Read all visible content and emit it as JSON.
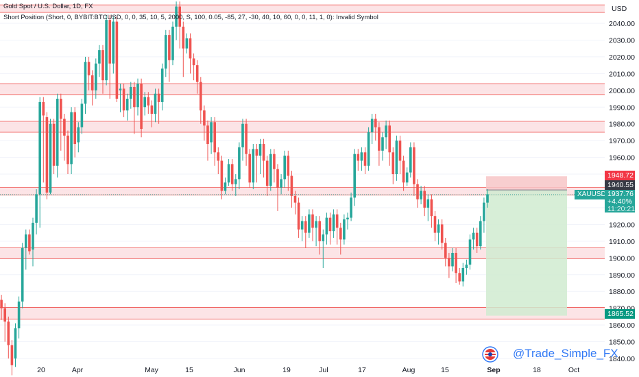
{
  "legend": {
    "title": "Gold Spot / U.S. Dollar, 1D, FX",
    "indicator": "Short Position (Short, 0, BYBIT:BTCUSD, 0, 0, 35, 10, 5, 2000, S, 100, 0.05, -85, 27, -30, 40, 10, 60, 0, 0, 11, 1, 0): Invalid Symbol"
  },
  "currency": "USD",
  "watermark": "@Trade_Simple_FX",
  "tags": {
    "symbol": "XAUUSD",
    "stop": "1948.72",
    "entry": "1940.55",
    "price": "1937.76",
    "change": "+4.40%",
    "countdown": "11:20:21",
    "target": "1865.52"
  },
  "colors": {
    "up": "#26a69a",
    "down": "#ef5350",
    "zone_fill": "#fbdde0",
    "zone_line": "#ef5350",
    "profit": "#d0ebd0",
    "loss": "#f7c5c7",
    "price_tag": "#26a69a",
    "stop_tag": "#f23645",
    "target_tag": "#089981",
    "entry_tag": "#363a45",
    "watermark": "#3179f5"
  },
  "chart_data": {
    "type": "candlestick",
    "y_axis_ticks": [
      1840,
      1850,
      1860,
      1870,
      1880,
      1890,
      1900,
      1910,
      1920,
      1930,
      1940,
      1950,
      1960,
      1970,
      1980,
      1990,
      2000,
      2010,
      2020,
      2030,
      2040
    ],
    "x_axis_ticks": [
      "20",
      "Apr",
      "May",
      "15",
      "Jun",
      "19",
      "Jul",
      "17",
      "Aug",
      "15",
      "Sep",
      "18",
      "Oct"
    ],
    "ylim": [
      1836,
      2051
    ],
    "zones": [
      {
        "low": 2046.5,
        "high": 2051
      },
      {
        "low": 1997.5,
        "high": 2004
      },
      {
        "low": 1975,
        "high": 1981.5
      },
      {
        "low": 1937.5,
        "high": 1942
      },
      {
        "low": 1899.5,
        "high": 1906
      },
      {
        "low": 1863.5,
        "high": 1870.5
      }
    ],
    "position": {
      "side": "short",
      "entry": 1940.55,
      "stop": 1948.72,
      "target": 1865.52
    },
    "last_price": 1937.76,
    "candles": [
      [
        1,
        1875,
        1870,
        1863
      ],
      [
        2,
        1870,
        1862,
        1850
      ],
      [
        3,
        1862,
        1848,
        1840
      ],
      [
        4,
        1848,
        1836,
        1830
      ],
      [
        5,
        1840,
        1858,
        1835
      ],
      [
        6,
        1858,
        1874,
        1852
      ],
      [
        7,
        1874,
        1906,
        1870
      ],
      [
        8,
        1906,
        1914,
        1893
      ],
      [
        9,
        1914,
        1904,
        1902
      ],
      [
        10,
        1905,
        1921,
        1895
      ],
      [
        11,
        1921,
        1938,
        1914
      ],
      [
        12,
        1938,
        1993,
        1918
      ],
      [
        13,
        1993,
        1985,
        1945
      ],
      [
        14,
        1984,
        1939,
        1935
      ],
      [
        15,
        1939,
        1980,
        1938
      ],
      [
        16,
        1980,
        1955,
        1950
      ],
      [
        17,
        1955,
        1995,
        1948
      ],
      [
        18,
        1995,
        1983,
        1964
      ],
      [
        19,
        1983,
        1973,
        1958
      ],
      [
        20,
        1973,
        1956,
        1950
      ],
      [
        21,
        1956,
        1987,
        1950
      ],
      [
        22,
        1987,
        1968,
        1960
      ],
      [
        23,
        1969,
        1978,
        1963
      ],
      [
        24,
        1978,
        1992,
        1974
      ],
      [
        25,
        1992,
        2017,
        1986
      ],
      [
        26,
        2017,
        2009,
        2000
      ],
      [
        27,
        2009,
        2000,
        1991
      ],
      [
        28,
        2000,
        2016,
        1995
      ],
      [
        29,
        2016,
        2024,
        2008
      ],
      [
        30,
        2024,
        2006,
        1998
      ],
      [
        31,
        2006,
        2042,
        2003
      ],
      [
        32,
        2042,
        2016,
        1995
      ],
      [
        33,
        2016,
        2041,
        2010
      ],
      [
        34,
        2041,
        1995,
        1993
      ],
      [
        35,
        2000,
        2001,
        1987
      ],
      [
        36,
        2001,
        1988,
        1984
      ],
      [
        37,
        1988,
        1995,
        1982
      ],
      [
        38,
        1995,
        2002,
        1989
      ],
      [
        39,
        2002,
        1990,
        1974
      ],
      [
        40,
        1990,
        2004,
        1985
      ],
      [
        41,
        2004,
        1977,
        1972
      ],
      [
        42,
        1990,
        1996,
        1985
      ],
      [
        43,
        1996,
        1991,
        1986
      ],
      [
        44,
        1991,
        1986,
        1978
      ],
      [
        45,
        1986,
        1998,
        1981
      ],
      [
        46,
        1998,
        1993,
        1980
      ],
      [
        47,
        1993,
        2013,
        1988
      ],
      [
        48,
        2013,
        2033,
        2008
      ],
      [
        49,
        2033,
        2018,
        2005
      ],
      [
        50,
        2018,
        2038,
        2015
      ],
      [
        51,
        2038,
        2050,
        2030
      ],
      [
        52,
        2050,
        2038,
        2025
      ],
      [
        53,
        2038,
        2025,
        2008
      ],
      [
        54,
        2025,
        2031,
        2022
      ],
      [
        55,
        2031,
        2019,
        2010
      ],
      [
        56,
        2019,
        2015,
        2006
      ],
      [
        57,
        2015,
        2005,
        1998
      ],
      [
        58,
        2005,
        1988,
        1980
      ],
      [
        59,
        1988,
        1979,
        1970
      ],
      [
        60,
        1979,
        1968,
        1958
      ],
      [
        61,
        1969,
        1981,
        1962
      ],
      [
        62,
        1981,
        1963,
        1955
      ],
      [
        63,
        1963,
        1958,
        1950
      ],
      [
        64,
        1958,
        1940,
        1935
      ],
      [
        65,
        1940,
        1945,
        1938
      ],
      [
        66,
        1945,
        1956,
        1943
      ],
      [
        67,
        1956,
        1944,
        1940
      ],
      [
        68,
        1944,
        1947,
        1937
      ],
      [
        69,
        1947,
        1966,
        1941
      ],
      [
        70,
        1966,
        1980,
        1958
      ],
      [
        71,
        1980,
        1962,
        1955
      ],
      [
        72,
        1962,
        1945,
        1942
      ],
      [
        73,
        1945,
        1965,
        1941
      ],
      [
        74,
        1965,
        1961,
        1945
      ],
      [
        75,
        1961,
        1968,
        1950
      ],
      [
        76,
        1968,
        1958,
        1948
      ],
      [
        77,
        1958,
        1943,
        1937
      ],
      [
        78,
        1943,
        1962,
        1940
      ],
      [
        79,
        1962,
        1953,
        1945
      ],
      [
        80,
        1953,
        1942,
        1928
      ],
      [
        81,
        1942,
        1947,
        1938
      ],
      [
        82,
        1947,
        1961,
        1942
      ],
      [
        83,
        1961,
        1949,
        1940
      ],
      [
        84,
        1949,
        1937,
        1930
      ],
      [
        85,
        1937,
        1933,
        1926
      ],
      [
        86,
        1933,
        1917,
        1912
      ],
      [
        87,
        1917,
        1922,
        1910
      ],
      [
        88,
        1922,
        1915,
        1906
      ],
      [
        89,
        1915,
        1926,
        1912
      ],
      [
        90,
        1926,
        1918,
        1910
      ],
      [
        91,
        1918,
        1922,
        1907
      ],
      [
        92,
        1922,
        1910,
        1902
      ],
      [
        93,
        1910,
        1914,
        1894
      ],
      [
        94,
        1914,
        1924,
        1908
      ],
      [
        95,
        1924,
        1916,
        1908
      ],
      [
        96,
        1916,
        1926,
        1912
      ],
      [
        97,
        1926,
        1918,
        1908
      ],
      [
        98,
        1918,
        1911,
        1902
      ],
      [
        99,
        1911,
        1923,
        1908
      ],
      [
        100,
        1923,
        1924,
        1917
      ],
      [
        101,
        1924,
        1936,
        1922
      ],
      [
        102,
        1936,
        1962,
        1931
      ],
      [
        103,
        1962,
        1958,
        1952
      ],
      [
        104,
        1958,
        1963,
        1952
      ],
      [
        105,
        1963,
        1955,
        1950
      ],
      [
        106,
        1955,
        1975,
        1952
      ],
      [
        107,
        1975,
        1983,
        1968
      ],
      [
        108,
        1983,
        1978,
        1970
      ],
      [
        109,
        1978,
        1964,
        1955
      ],
      [
        110,
        1964,
        1972,
        1958
      ],
      [
        111,
        1972,
        1979,
        1965
      ],
      [
        112,
        1979,
        1963,
        1955
      ],
      [
        113,
        1963,
        1950,
        1944
      ],
      [
        114,
        1950,
        1970,
        1946
      ],
      [
        115,
        1970,
        1958,
        1950
      ],
      [
        116,
        1958,
        1945,
        1940
      ],
      [
        117,
        1945,
        1951,
        1943
      ],
      [
        118,
        1951,
        1966,
        1948
      ],
      [
        119,
        1966,
        1944,
        1937
      ],
      [
        120,
        1944,
        1935,
        1930
      ],
      [
        121,
        1935,
        1940,
        1932
      ],
      [
        122,
        1940,
        1930,
        1925
      ],
      [
        123,
        1930,
        1935,
        1922
      ],
      [
        124,
        1935,
        1925,
        1918
      ],
      [
        125,
        1925,
        1915,
        1910
      ],
      [
        126,
        1915,
        1920,
        1908
      ],
      [
        127,
        1920,
        1909,
        1905
      ],
      [
        128,
        1909,
        1900,
        1895
      ],
      [
        129,
        1900,
        1895,
        1888
      ],
      [
        130,
        1895,
        1903,
        1892
      ],
      [
        131,
        1903,
        1891,
        1885
      ],
      [
        132,
        1891,
        1886,
        1884
      ],
      [
        133,
        1886,
        1894,
        1883
      ],
      [
        134,
        1894,
        1896,
        1890
      ],
      [
        135,
        1896,
        1911,
        1893
      ],
      [
        136,
        1911,
        1915,
        1905
      ],
      [
        137,
        1915,
        1907,
        1903
      ],
      [
        138,
        1907,
        1922,
        1905
      ],
      [
        139,
        1922,
        1933,
        1915
      ],
      [
        140,
        1933,
        1938,
        1930
      ]
    ]
  }
}
